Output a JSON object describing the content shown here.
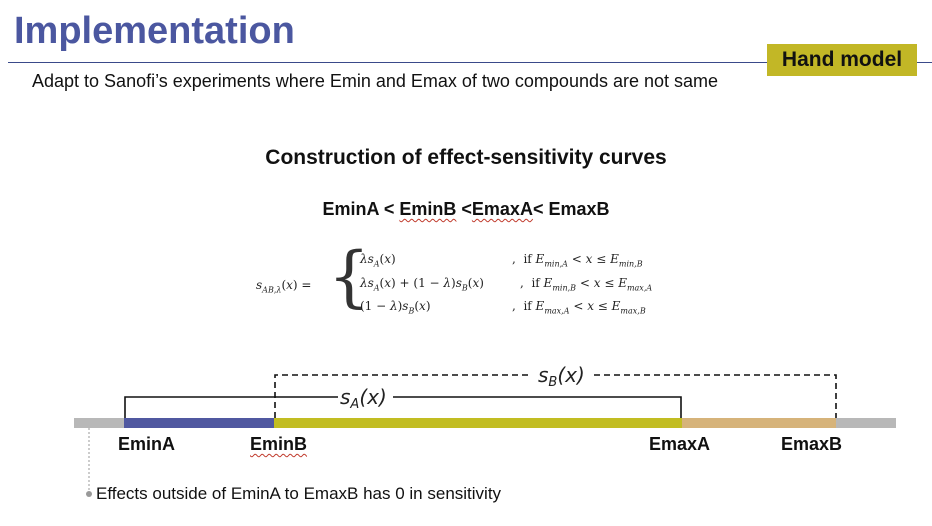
{
  "slide": {
    "title": "Implementation",
    "badge": "Hand model",
    "subtitle": "Adapt to Sanofi’s experiments where Emin and Emax of two compounds are not same",
    "heading": "Construction of effect-sensitivity curves",
    "ordering": {
      "p1": "EminA < ",
      "p2": "EminB",
      "p3": " <",
      "p4": "EmaxA",
      "p5": "< EmaxB"
    },
    "formula": {
      "lhs": "sₐʙ,λ(x) =",
      "cases": [
        {
          "expr": "λsₐ(x)",
          "cond": ",  if Eₘᵢₙ,ₐ < x ≤ Eₘᵢₙ,ʙ"
        },
        {
          "expr": "λsₐ(x) + (1 − λ)sʙ(x)",
          "cond": ",  if Eₘᵢₙ,ʙ < x ≤ Eₘₐₓ,ₐ"
        },
        {
          "expr": "(1 − λ)sʙ(x)",
          "cond": ",  if Eₘₐₓ,ₐ < x ≤ Eₘₐₓ,ʙ"
        }
      ]
    },
    "curves": {
      "sA": "sA(x)",
      "sB": "sB(x)"
    },
    "labels": {
      "eminA": "EminA",
      "eminB": "EminB",
      "emaxA": "EmaxA",
      "emaxB": "EmaxB"
    },
    "note": "Effects outside of EminA to EmaxB has 0 in sensitivity"
  },
  "colors": {
    "title": "#4b57a0",
    "badge": "#c2b726",
    "segment_a": "#5058a0",
    "segment_ab": "#c2bd22",
    "segment_b": "#d6b37a",
    "axis": "#b8b8b8"
  }
}
